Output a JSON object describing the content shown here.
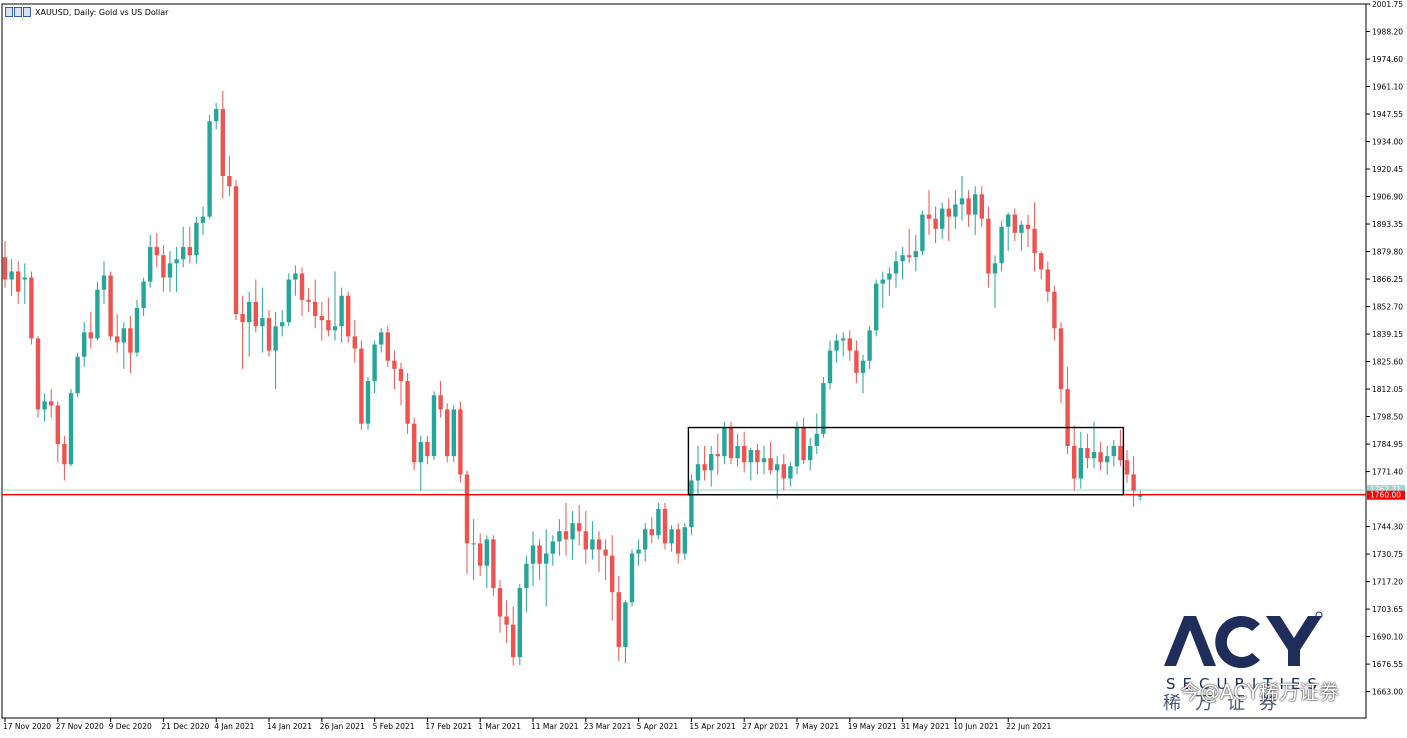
{
  "colors": {
    "up": "#26a69a",
    "down": "#ef5350",
    "bid_line": "#ff0000",
    "ask_line": "#9fd7d0",
    "box": "#000000",
    "axis": "#000000",
    "background": "#ffffff",
    "brand": "#1e2d5a"
  },
  "header": {
    "title": "XAUUSD, Daily:  Gold vs US Dollar",
    "icon": "chart-window-icon"
  },
  "watermark": {
    "logo": "ACY",
    "securities": "SECURITIES",
    "chinese": "稀万证券",
    "credit": "今@ACY稀万证券"
  },
  "chart_data": {
    "type": "candlestick",
    "symbol": "XAUUSD",
    "timeframe": "Daily",
    "title": "XAUUSD, Daily:  Gold vs US Dollar",
    "ylim": [
      1650.0,
      2001.75
    ],
    "y_ticks": [
      "2001.75",
      "1988.20",
      "1974.60",
      "1961.10",
      "1947.55",
      "1934.00",
      "1920.45",
      "1906.90",
      "1893.35",
      "1879.80",
      "1866.25",
      "1852.70",
      "1839.15",
      "1825.60",
      "1812.05",
      "1798.50",
      "1784.95",
      "1771.40",
      "1744.30",
      "1730.75",
      "1717.20",
      "1703.65",
      "1690.10",
      "1676.55",
      "1663.00"
    ],
    "x_ticks": [
      {
        "label": "17 Nov 2020",
        "i": 0
      },
      {
        "label": "27 Nov 2020",
        "i": 8
      },
      {
        "label": "9 Dec 2020",
        "i": 16
      },
      {
        "label": "21 Dec 2020",
        "i": 24
      },
      {
        "label": "4 Jan 2021",
        "i": 32
      },
      {
        "label": "14 Jan 2021",
        "i": 40
      },
      {
        "label": "26 Jan 2021",
        "i": 48
      },
      {
        "label": "5 Feb 2021",
        "i": 56
      },
      {
        "label": "17 Feb 2021",
        "i": 64
      },
      {
        "label": "1 Mar 2021",
        "i": 72
      },
      {
        "label": "11 Mar 2021",
        "i": 80
      },
      {
        "label": "23 Mar 2021",
        "i": 88
      },
      {
        "label": "5 Apr 2021",
        "i": 96
      },
      {
        "label": "15 Apr 2021",
        "i": 104
      },
      {
        "label": "27 Apr 2021",
        "i": 112
      },
      {
        "label": "7 May 2021",
        "i": 120
      },
      {
        "label": "19 May 2021",
        "i": 128
      },
      {
        "label": "31 May 2021",
        "i": 136
      },
      {
        "label": "10 Jun 2021",
        "i": 144
      },
      {
        "label": "22 Jun 2021",
        "i": 152
      }
    ],
    "current_bid": {
      "value": 1760.0,
      "label": "1760.00"
    },
    "current_ask": {
      "value": 1762.3,
      "label": "1762.31"
    },
    "price_box": {
      "from_i": 104,
      "to_i": 169,
      "high": 1793.1,
      "low": 1760.0
    },
    "candles": [
      [
        1877.0,
        1885.0,
        1862.0,
        1866.0
      ],
      [
        1866.0,
        1876.0,
        1858.0,
        1870.0
      ],
      [
        1870.0,
        1875.0,
        1854.0,
        1860.0
      ],
      [
        1866.0,
        1874.0,
        1854.0,
        1867.0
      ],
      [
        1867.0,
        1870.0,
        1834.0,
        1837.0
      ],
      [
        1837.0,
        1838.0,
        1798.0,
        1802.0
      ],
      [
        1802.0,
        1810.0,
        1796.0,
        1806.0
      ],
      [
        1806.0,
        1812.0,
        1798.0,
        1804.0
      ],
      [
        1804.0,
        1806.0,
        1776.0,
        1785.0
      ],
      [
        1785.0,
        1789.0,
        1767.0,
        1775.0
      ],
      [
        1775.0,
        1812.0,
        1774.0,
        1810.0
      ],
      [
        1810.0,
        1830.0,
        1808.0,
        1828.0
      ],
      [
        1828.0,
        1845.0,
        1823.0,
        1840.0
      ],
      [
        1840.0,
        1850.0,
        1832.0,
        1837.0
      ],
      [
        1837.0,
        1865.0,
        1836.0,
        1861.0
      ],
      [
        1861.0,
        1875.0,
        1854.0,
        1868.0
      ],
      [
        1868.0,
        1870.0,
        1836.0,
        1838.0
      ],
      [
        1838.0,
        1849.0,
        1830.0,
        1835.0
      ],
      [
        1835.0,
        1845.0,
        1822.0,
        1842.0
      ],
      [
        1842.0,
        1848.0,
        1820.0,
        1830.0
      ],
      [
        1830.0,
        1856.0,
        1828.0,
        1852.0
      ],
      [
        1852.0,
        1867.0,
        1848.0,
        1865.0
      ],
      [
        1865.0,
        1888.0,
        1862.0,
        1882.0
      ],
      [
        1882.0,
        1889.0,
        1872.0,
        1878.0
      ],
      [
        1878.0,
        1883.0,
        1860.0,
        1867.0
      ],
      [
        1867.0,
        1880.0,
        1860.0,
        1874.0
      ],
      [
        1874.0,
        1882.0,
        1860.0,
        1876.0
      ],
      [
        1876.0,
        1892.0,
        1872.0,
        1882.0
      ],
      [
        1882.0,
        1892.0,
        1874.0,
        1878.0
      ],
      [
        1878.0,
        1897.0,
        1874.0,
        1894.0
      ],
      [
        1894.0,
        1902.0,
        1888.0,
        1897.0
      ],
      [
        1897.0,
        1947.0,
        1896.0,
        1944.0
      ],
      [
        1944.0,
        1953.0,
        1940.0,
        1950.0
      ],
      [
        1950.0,
        1959.0,
        1906.0,
        1917.0
      ],
      [
        1917.0,
        1927.0,
        1907.0,
        1912.0
      ],
      [
        1912.0,
        1915.0,
        1846.0,
        1849.0
      ],
      [
        1849.0,
        1858.0,
        1822.0,
        1845.0
      ],
      [
        1845.0,
        1860.0,
        1828.0,
        1855.0
      ],
      [
        1855.0,
        1866.0,
        1840.0,
        1843.0
      ],
      [
        1843.0,
        1862.0,
        1830.0,
        1847.0
      ],
      [
        1847.0,
        1851.0,
        1828.0,
        1831.0
      ],
      [
        1831.0,
        1850.0,
        1812.0,
        1843.0
      ],
      [
        1843.0,
        1851.0,
        1838.0,
        1845.0
      ],
      [
        1845.0,
        1869.0,
        1843.0,
        1866.0
      ],
      [
        1866.0,
        1873.0,
        1858.0,
        1869.0
      ],
      [
        1869.0,
        1872.0,
        1848.0,
        1856.0
      ],
      [
        1856.0,
        1862.0,
        1850.0,
        1855.0
      ],
      [
        1855.0,
        1866.0,
        1842.0,
        1848.0
      ],
      [
        1848.0,
        1855.0,
        1836.0,
        1846.0
      ],
      [
        1846.0,
        1857.0,
        1838.0,
        1841.0
      ],
      [
        1841.0,
        1870.0,
        1836.0,
        1843.0
      ],
      [
        1843.0,
        1862.0,
        1835.0,
        1858.0
      ],
      [
        1858.0,
        1860.0,
        1835.0,
        1838.0
      ],
      [
        1838.0,
        1846.0,
        1825.0,
        1832.0
      ],
      [
        1832.0,
        1836.0,
        1792.0,
        1795.0
      ],
      [
        1795.0,
        1818.0,
        1792.0,
        1816.0
      ],
      [
        1816.0,
        1836.0,
        1810.0,
        1834.0
      ],
      [
        1834.0,
        1842.0,
        1830.0,
        1840.0
      ],
      [
        1840.0,
        1843.0,
        1823.0,
        1826.0
      ],
      [
        1826.0,
        1831.0,
        1812.0,
        1822.0
      ],
      [
        1822.0,
        1825.0,
        1804.0,
        1816.0
      ],
      [
        1816.0,
        1820.0,
        1790.0,
        1795.0
      ],
      [
        1795.0,
        1798.0,
        1772.0,
        1776.0
      ],
      [
        1776.0,
        1789.0,
        1762.0,
        1786.0
      ],
      [
        1786.0,
        1789.0,
        1775.0,
        1779.0
      ],
      [
        1779.0,
        1811.0,
        1777.0,
        1809.0
      ],
      [
        1809.0,
        1816.0,
        1798.0,
        1802.0
      ],
      [
        1802.0,
        1805.0,
        1776.0,
        1779.0
      ],
      [
        1779.0,
        1804.0,
        1776.0,
        1802.0
      ],
      [
        1802.0,
        1806.0,
        1766.0,
        1770.0
      ],
      [
        1770.0,
        1772.0,
        1721.0,
        1736.0
      ],
      [
        1736.0,
        1748.0,
        1718.0,
        1736.0
      ],
      [
        1736.0,
        1741.0,
        1720.0,
        1725.0
      ],
      [
        1725.0,
        1740.0,
        1714.0,
        1738.0
      ],
      [
        1738.0,
        1740.0,
        1710.0,
        1714.0
      ],
      [
        1714.0,
        1718.0,
        1692.0,
        1700.0
      ],
      [
        1700.0,
        1708.0,
        1687.0,
        1696.0
      ],
      [
        1696.0,
        1705.0,
        1676.0,
        1680.0
      ],
      [
        1680.0,
        1716.0,
        1676.0,
        1714.0
      ],
      [
        1714.0,
        1730.0,
        1702.0,
        1726.0
      ],
      [
        1726.0,
        1742.0,
        1715.0,
        1735.0
      ],
      [
        1735.0,
        1738.0,
        1718.0,
        1726.0
      ],
      [
        1726.0,
        1743.0,
        1705.0,
        1731.0
      ],
      [
        1731.0,
        1740.0,
        1725.0,
        1737.0
      ],
      [
        1737.0,
        1748.0,
        1730.0,
        1742.0
      ],
      [
        1742.0,
        1756.0,
        1730.0,
        1738.0
      ],
      [
        1738.0,
        1752.0,
        1728.0,
        1746.0
      ],
      [
        1746.0,
        1755.0,
        1735.0,
        1742.0
      ],
      [
        1742.0,
        1752.0,
        1726.0,
        1733.0
      ],
      [
        1733.0,
        1747.0,
        1728.0,
        1738.0
      ],
      [
        1738.0,
        1742.0,
        1722.0,
        1733.0
      ],
      [
        1733.0,
        1738.0,
        1718.0,
        1730.0
      ],
      [
        1730.0,
        1740.0,
        1698.0,
        1712.0
      ],
      [
        1712.0,
        1720.0,
        1678.0,
        1685.0
      ],
      [
        1685.0,
        1708.0,
        1677.0,
        1707.0
      ],
      [
        1707.0,
        1733.0,
        1705.0,
        1731.0
      ],
      [
        1731.0,
        1738.0,
        1725.0,
        1733.0
      ],
      [
        1733.0,
        1746.0,
        1727.0,
        1743.0
      ],
      [
        1743.0,
        1749.0,
        1736.0,
        1740.0
      ],
      [
        1740.0,
        1756.0,
        1738.0,
        1753.0
      ],
      [
        1753.0,
        1756.0,
        1733.0,
        1736.0
      ],
      [
        1736.0,
        1745.0,
        1732.0,
        1743.0
      ],
      [
        1743.0,
        1746.0,
        1726.0,
        1731.0
      ],
      [
        1731.0,
        1746.0,
        1728.0,
        1744.0
      ],
      [
        1744.0,
        1770.0,
        1740.0,
        1767.0
      ],
      [
        1767.0,
        1784.0,
        1760.0,
        1775.0
      ],
      [
        1775.0,
        1784.0,
        1767.0,
        1772.0
      ],
      [
        1772.0,
        1784.0,
        1764.0,
        1780.0
      ],
      [
        1780.0,
        1790.0,
        1770.0,
        1779.0
      ],
      [
        1779.0,
        1796.0,
        1775.0,
        1793.0
      ],
      [
        1793.0,
        1796.0,
        1775.0,
        1778.0
      ],
      [
        1778.0,
        1790.0,
        1774.0,
        1784.0
      ],
      [
        1784.0,
        1791.0,
        1771.0,
        1776.0
      ],
      [
        1776.0,
        1783.0,
        1767.0,
        1782.0
      ],
      [
        1782.0,
        1785.0,
        1770.0,
        1776.0
      ],
      [
        1776.0,
        1784.0,
        1770.0,
        1778.0
      ],
      [
        1778.0,
        1786.0,
        1770.0,
        1772.0
      ],
      [
        1772.0,
        1779.0,
        1758.0,
        1775.0
      ],
      [
        1775.0,
        1780.0,
        1762.0,
        1768.0
      ],
      [
        1768.0,
        1776.0,
        1764.0,
        1774.0
      ],
      [
        1774.0,
        1796.0,
        1770.0,
        1793.0
      ],
      [
        1793.0,
        1798.0,
        1775.0,
        1777.0
      ],
      [
        1777.0,
        1788.0,
        1772.0,
        1784.0
      ],
      [
        1784.0,
        1800.0,
        1780.0,
        1790.0
      ],
      [
        1790.0,
        1818.0,
        1788.0,
        1815.0
      ],
      [
        1815.0,
        1836.0,
        1812.0,
        1831.0
      ],
      [
        1831.0,
        1839.0,
        1825.0,
        1836.0
      ],
      [
        1836.0,
        1840.0,
        1828.0,
        1837.0
      ],
      [
        1837.0,
        1841.0,
        1826.0,
        1831.0
      ],
      [
        1831.0,
        1836.0,
        1815.0,
        1820.0
      ],
      [
        1820.0,
        1829.0,
        1810.0,
        1826.0
      ],
      [
        1826.0,
        1843.0,
        1822.0,
        1841.0
      ],
      [
        1841.0,
        1866.0,
        1838.0,
        1864.0
      ],
      [
        1864.0,
        1870.0,
        1852.0,
        1866.0
      ],
      [
        1866.0,
        1872.0,
        1858.0,
        1869.0
      ],
      [
        1869.0,
        1880.0,
        1862.0,
        1875.0
      ],
      [
        1875.0,
        1882.0,
        1866.0,
        1878.0
      ],
      [
        1878.0,
        1891.0,
        1874.0,
        1877.0
      ],
      [
        1877.0,
        1888.0,
        1870.0,
        1880.0
      ],
      [
        1880.0,
        1900.0,
        1878.0,
        1898.0
      ],
      [
        1898.0,
        1910.0,
        1888.0,
        1896.0
      ],
      [
        1896.0,
        1902.0,
        1884.0,
        1891.0
      ],
      [
        1891.0,
        1904.0,
        1886.0,
        1901.0
      ],
      [
        1901.0,
        1906.0,
        1885.0,
        1897.0
      ],
      [
        1897.0,
        1910.0,
        1891.0,
        1903.0
      ],
      [
        1903.0,
        1917.0,
        1895.0,
        1906.0
      ],
      [
        1906.0,
        1910.0,
        1892.0,
        1898.0
      ],
      [
        1898.0,
        1912.0,
        1888.0,
        1908.0
      ],
      [
        1908.0,
        1912.0,
        1892.0,
        1896.0
      ],
      [
        1896.0,
        1902.0,
        1862.0,
        1869.0
      ],
      [
        1869.0,
        1878.0,
        1852.0,
        1874.0
      ],
      [
        1874.0,
        1895.0,
        1870.0,
        1892.0
      ],
      [
        1892.0,
        1899.0,
        1880.0,
        1898.0
      ],
      [
        1898.0,
        1901.0,
        1885.0,
        1889.0
      ],
      [
        1889.0,
        1895.0,
        1880.0,
        1893.0
      ],
      [
        1893.0,
        1898.0,
        1882.0,
        1891.0
      ],
      [
        1891.0,
        1904.0,
        1870.0,
        1879.0
      ],
      [
        1879.0,
        1880.0,
        1866.0,
        1871.0
      ],
      [
        1871.0,
        1875.0,
        1855.0,
        1860.0
      ],
      [
        1860.0,
        1863.0,
        1836.0,
        1842.0
      ],
      [
        1842.0,
        1845.0,
        1805.0,
        1812.0
      ],
      [
        1812.0,
        1823.0,
        1780.0,
        1784.0
      ],
      [
        1784.0,
        1794.0,
        1762.0,
        1768.0
      ],
      [
        1768.0,
        1791.0,
        1763.0,
        1783.0
      ],
      [
        1783.0,
        1790.0,
        1773.0,
        1778.0
      ],
      [
        1778.0,
        1796.0,
        1773.0,
        1781.0
      ],
      [
        1781.0,
        1786.0,
        1772.0,
        1776.0
      ],
      [
        1776.0,
        1784.0,
        1770.0,
        1779.0
      ],
      [
        1779.0,
        1787.0,
        1774.0,
        1784.0
      ],
      [
        1784.0,
        1792.0,
        1774.0,
        1777.0
      ],
      [
        1777.0,
        1782.0,
        1766.0,
        1770.0
      ],
      [
        1770.0,
        1779.0,
        1754.0,
        1762.0
      ],
      [
        1759.0,
        1762.0,
        1757.0,
        1760.0
      ]
    ]
  }
}
